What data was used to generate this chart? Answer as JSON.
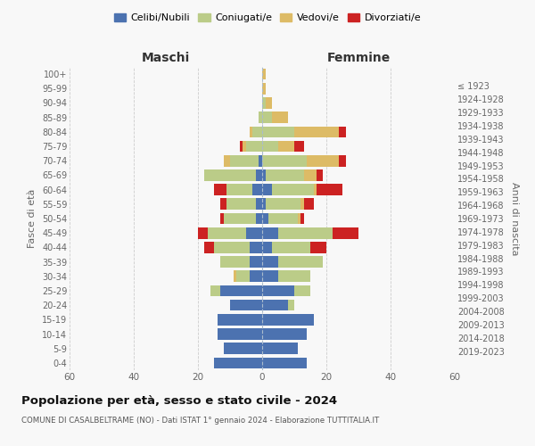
{
  "age_groups": [
    "0-4",
    "5-9",
    "10-14",
    "15-19",
    "20-24",
    "25-29",
    "30-34",
    "35-39",
    "40-44",
    "45-49",
    "50-54",
    "55-59",
    "60-64",
    "65-69",
    "70-74",
    "75-79",
    "80-84",
    "85-89",
    "90-94",
    "95-99",
    "100+"
  ],
  "birth_years": [
    "2019-2023",
    "2014-2018",
    "2009-2013",
    "2004-2008",
    "1999-2003",
    "1994-1998",
    "1989-1993",
    "1984-1988",
    "1979-1983",
    "1974-1978",
    "1969-1973",
    "1964-1968",
    "1959-1963",
    "1954-1958",
    "1949-1953",
    "1944-1948",
    "1939-1943",
    "1934-1938",
    "1929-1933",
    "1924-1928",
    "≤ 1923"
  ],
  "male": {
    "celibi": [
      15,
      12,
      14,
      14,
      10,
      13,
      4,
      4,
      4,
      5,
      2,
      2,
      3,
      2,
      1,
      0,
      0,
      0,
      0,
      0,
      0
    ],
    "coniugati": [
      0,
      0,
      0,
      0,
      0,
      3,
      4,
      9,
      11,
      12,
      10,
      9,
      8,
      16,
      9,
      5,
      3,
      1,
      0,
      0,
      0
    ],
    "vedovi": [
      0,
      0,
      0,
      0,
      0,
      0,
      1,
      0,
      0,
      0,
      0,
      0,
      0,
      0,
      2,
      1,
      1,
      0,
      0,
      0,
      0
    ],
    "divorziati": [
      0,
      0,
      0,
      0,
      0,
      0,
      0,
      0,
      3,
      3,
      1,
      2,
      4,
      0,
      0,
      1,
      0,
      0,
      0,
      0,
      0
    ]
  },
  "female": {
    "nubili": [
      14,
      11,
      14,
      16,
      8,
      10,
      5,
      5,
      3,
      5,
      2,
      1,
      3,
      1,
      0,
      0,
      0,
      0,
      0,
      0,
      0
    ],
    "coniugate": [
      0,
      0,
      0,
      0,
      2,
      5,
      10,
      14,
      12,
      17,
      9,
      11,
      13,
      12,
      14,
      5,
      10,
      3,
      1,
      0,
      0
    ],
    "vedove": [
      0,
      0,
      0,
      0,
      0,
      0,
      0,
      0,
      0,
      0,
      1,
      1,
      1,
      4,
      10,
      5,
      14,
      5,
      2,
      1,
      1
    ],
    "divorziate": [
      0,
      0,
      0,
      0,
      0,
      0,
      0,
      0,
      5,
      8,
      1,
      3,
      8,
      2,
      2,
      3,
      2,
      0,
      0,
      0,
      0
    ]
  },
  "colors": {
    "celibi": "#4C72B0",
    "coniugati": "#BBCC88",
    "vedovi": "#DDBB66",
    "divorziati": "#CC2222"
  },
  "title": "Popolazione per età, sesso e stato civile - 2024",
  "subtitle": "COMUNE DI CASALBELTRAME (NO) - Dati ISTAT 1° gennaio 2024 - Elaborazione TUTTITALIA.IT",
  "xlabel_left": "Maschi",
  "xlabel_right": "Femmine",
  "ylabel_left": "Fasce di età",
  "ylabel_right": "Anni di nascita",
  "legend_labels": [
    "Celibi/Nubili",
    "Coniugati/e",
    "Vedovi/e",
    "Divorziati/e"
  ],
  "xlim": 60,
  "background_color": "#f8f8f8"
}
